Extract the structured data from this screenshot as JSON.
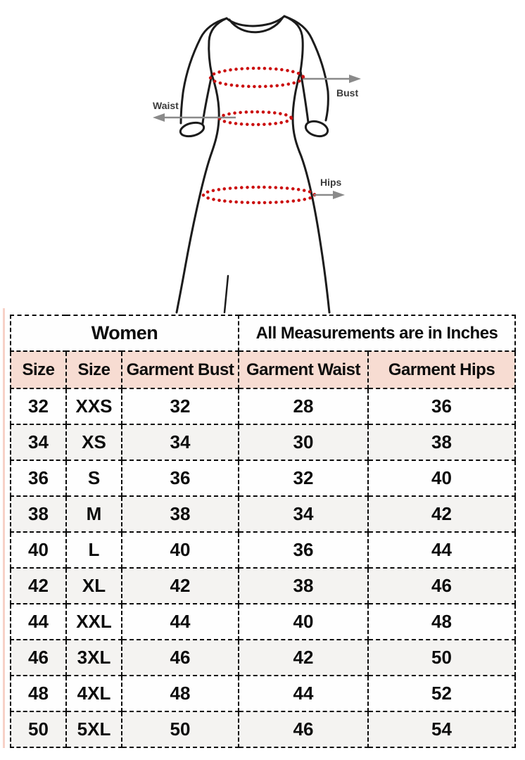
{
  "diagram": {
    "labels": {
      "bust": "Bust",
      "waist": "Waist",
      "hips": "Hips"
    },
    "colors": {
      "outline": "#1c1c1c",
      "dots": "#cb1010",
      "arrow": "#8a8a8a"
    }
  },
  "size_chart": {
    "group_headers": {
      "left": "Women",
      "right": "All Measurements are in Inches"
    },
    "columns": [
      "Size",
      "Size",
      "Garment Bust",
      "Garment Waist",
      "Garment Hips"
    ],
    "rows": [
      [
        "32",
        "XXS",
        "32",
        "28",
        "36"
      ],
      [
        "34",
        "XS",
        "34",
        "30",
        "38"
      ],
      [
        "36",
        "S",
        "36",
        "32",
        "40"
      ],
      [
        "38",
        "M",
        "38",
        "34",
        "42"
      ],
      [
        "40",
        "L",
        "40",
        "36",
        "44"
      ],
      [
        "42",
        "XL",
        "42",
        "38",
        "46"
      ],
      [
        "44",
        "XXL",
        "44",
        "40",
        "48"
      ],
      [
        "46",
        "3XL",
        "46",
        "42",
        "50"
      ],
      [
        "48",
        "4XL",
        "48",
        "44",
        "52"
      ],
      [
        "50",
        "5XL",
        "50",
        "46",
        "54"
      ]
    ],
    "colors": {
      "women_bg": "#ffff00",
      "column_header_bg": "#f7dcd2",
      "border": "#0a0a0a",
      "row_alt_bg": "#f4f3f1"
    }
  }
}
